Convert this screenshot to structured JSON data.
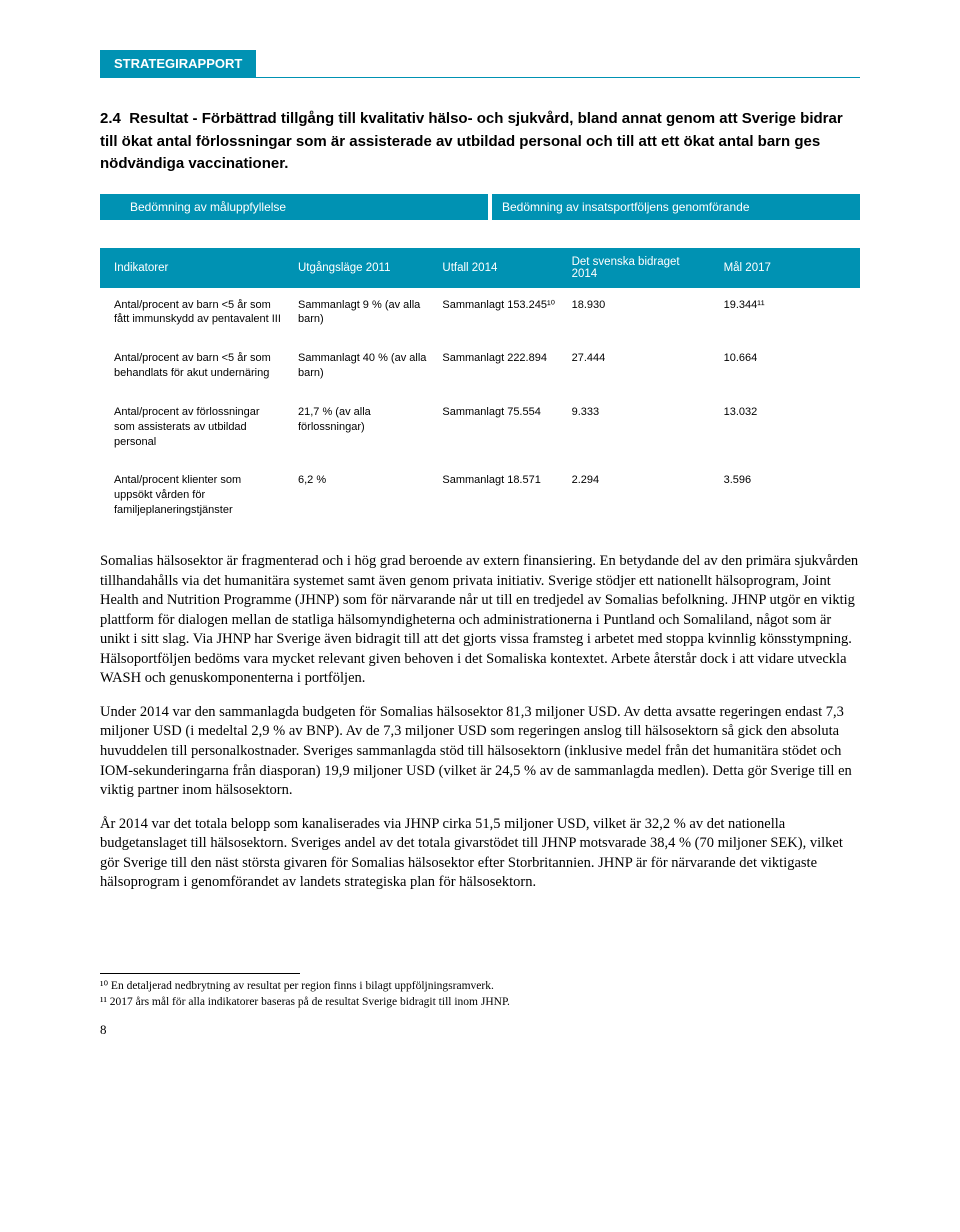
{
  "header": {
    "label": "STRATEGIRAPPORT"
  },
  "section": {
    "number": "2.4",
    "title": "Resultat - Förbättrad tillgång till kvalitativ hälso- och sjukvård, bland annat genom att Sverige bidrar till ökat antal förlossningar som är assisterade av utbildad personal och till att ett ökat antal barn ges nödvändiga vaccinationer."
  },
  "assessment": {
    "left": "Bedömning av måluppfyllelse",
    "right": "Bedömning av insatsportföljens genomförande"
  },
  "table": {
    "columns": [
      "Indikatorer",
      "Utgångsläge 2011",
      "Utfall 2014",
      "Det svenska bidraget 2014",
      "Mål 2017"
    ],
    "rows": [
      {
        "indicator": "Antal/procent av barn <5 år som fått immunskydd av pentavalent III",
        "baseline": "Sammanlagt 9 % (av alla barn)",
        "outcome": "Sammanlagt 153.245¹⁰",
        "swedish": "18.930",
        "goal": "19.344¹¹"
      },
      {
        "indicator": "Antal/procent av barn <5 år som behandlats för akut undernäring",
        "baseline": "Sammanlagt 40 % (av alla barn)",
        "outcome": "Sammanlagt 222.894",
        "swedish": "27.444",
        "goal": "10.664"
      },
      {
        "indicator": "Antal/procent av förlossningar som assisterats av utbildad personal",
        "baseline": "21,7 % (av alla förlossningar)",
        "outcome": "Sammanlagt 75.554",
        "swedish": "9.333",
        "goal": "13.032"
      },
      {
        "indicator": "Antal/procent klienter som uppsökt vården för familjeplaneringstjänster",
        "baseline": "6,2 %",
        "outcome": "Sammanlagt 18.571",
        "swedish": "2.294",
        "goal": "3.596"
      }
    ]
  },
  "paragraphs": {
    "p1": "Somalias hälsosektor är fragmenterad och i hög grad beroende av extern finansiering. En betydande del av den primära sjukvården tillhandahålls via det humanitära systemet samt även genom privata initiativ. Sverige stödjer ett nationellt hälsoprogram, Joint Health and Nutrition Programme (JHNP) som för närvarande når ut till en tredjedel av Somalias befolkning. JHNP utgör en viktig plattform för dialogen mellan de statliga hälsomyndigheterna och administrationerna i Puntland och Somaliland, något som är unikt i sitt slag. Via JHNP har Sverige även bidragit till att det gjorts vissa framsteg i arbetet med stoppa kvinnlig könsstympning. Hälsoportföljen bedöms vara mycket relevant given behoven i det Somaliska kontextet. Arbete återstår dock i att vidare utveckla WASH och genuskomponenterna i portföljen.",
    "p2": "Under 2014 var den sammanlagda budgeten för Somalias hälsosektor 81,3 miljoner USD. Av detta avsatte regeringen endast 7,3 miljoner USD (i medeltal 2,9 % av BNP). Av de 7,3 miljoner USD som regeringen anslog till hälsosektorn så gick den absoluta huvuddelen till personalkostnader. Sveriges sammanlagda stöd till hälsosektorn (inklusive medel från det humanitära stödet och IOM-sekunderingarna från diasporan) 19,9 miljoner USD (vilket är 24,5 % av de sammanlagda medlen). Detta gör Sverige till en viktig partner inom hälsosektorn.",
    "p3": "År 2014 var det totala belopp som kanaliserades via JHNP cirka 51,5 miljoner USD, vilket är 32,2 % av det nationella budgetanslaget till hälsosektorn. Sveriges andel av det totala givarstödet till JHNP motsvarade 38,4 % (70 miljoner SEK), vilket gör Sverige till den näst största givaren för Somalias hälsosektor efter Storbritannien. JHNP är för närvarande det viktigaste hälsoprogram i genomförandet av landets strategiska plan för hälsosektorn."
  },
  "footnotes": {
    "f10": "¹⁰ En detaljerad nedbrytning av resultat per region finns i bilagt uppföljningsramverk.",
    "f11": "¹¹ 2017 års mål för alla indikatorer baseras på de resultat Sverige bidragit till inom JHNP."
  },
  "pageNumber": "8",
  "colors": {
    "brand": "#0092b3",
    "text": "#000000",
    "bg": "#ffffff"
  }
}
